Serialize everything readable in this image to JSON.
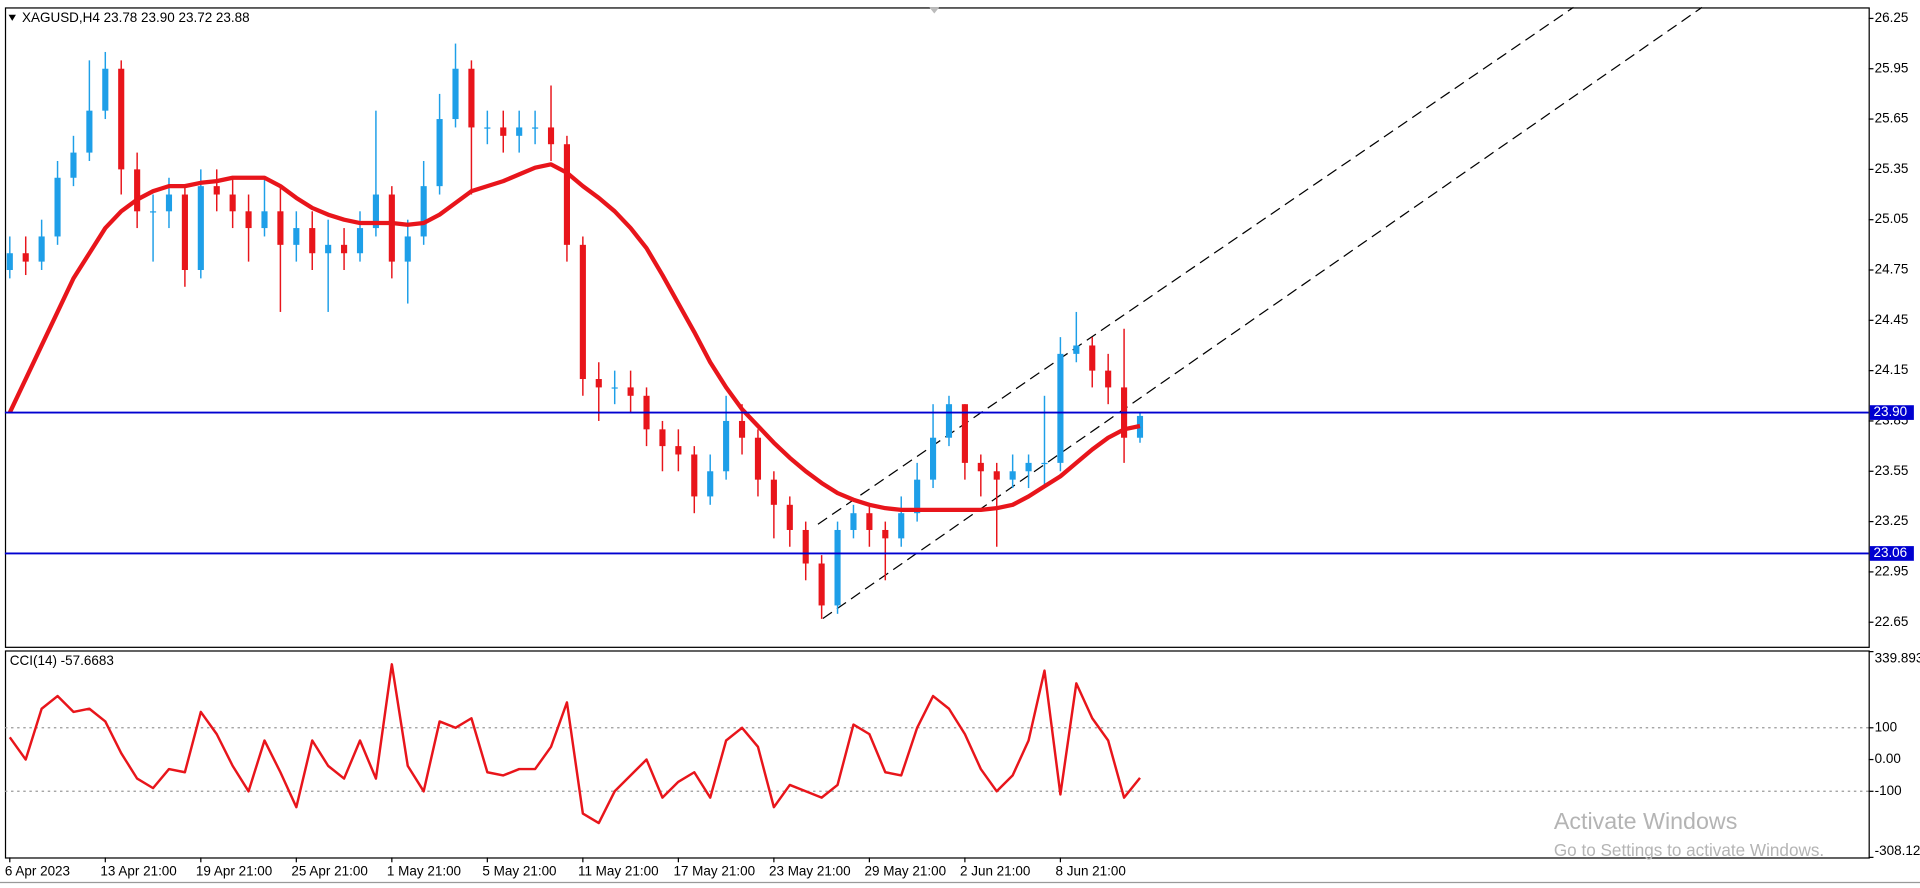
{
  "header": "XAGUSD,H4  23.78 23.90 23.72 23.88",
  "indicator_label": "CCI(14) -57.6683",
  "watermark": {
    "title": "Activate Windows",
    "subtitle": "Go to Settings to activate Windows."
  },
  "chart_data": [
    {
      "type": "candlestick",
      "categories": [
        "6 Apr 2023",
        null,
        null,
        null,
        null,
        null,
        "13 Apr 21:00",
        null,
        null,
        null,
        null,
        null,
        "19 Apr 21:00",
        null,
        null,
        null,
        null,
        null,
        "25 Apr 21:00",
        null,
        null,
        null,
        null,
        null,
        "1 May 21:00",
        null,
        null,
        null,
        null,
        null,
        "5 May 21:00",
        null,
        null,
        null,
        null,
        null,
        "11 May 21:00",
        null,
        null,
        null,
        null,
        null,
        "17 May 21:00",
        null,
        null,
        null,
        null,
        null,
        "23 May 21:00",
        null,
        null,
        null,
        null,
        null,
        "29 May 21:00",
        null,
        null,
        null,
        null,
        null,
        "2 Jun 21:00",
        null,
        null,
        null,
        null,
        null,
        "8 Jun 21:00",
        null,
        null,
        null,
        null,
        null
      ],
      "open": [
        24.75,
        24.85,
        24.8,
        24.95,
        25.3,
        25.45,
        25.7,
        25.95,
        25.35,
        25.1,
        25.1,
        25.2,
        24.75,
        25.25,
        25.2,
        25.1,
        25.0,
        25.1,
        24.9,
        25.0,
        24.85,
        24.9,
        24.85,
        25.0,
        25.2,
        24.8,
        24.95,
        25.25,
        25.65,
        25.95,
        25.6,
        25.6,
        25.55,
        25.6,
        25.6,
        25.5,
        24.9,
        24.1,
        24.05,
        24.05,
        24.0,
        23.8,
        23.7,
        23.65,
        23.4,
        23.55,
        23.85,
        23.75,
        23.5,
        23.35,
        23.2,
        23.0,
        22.75,
        23.2,
        23.3,
        23.2,
        23.15,
        23.3,
        23.5,
        23.75,
        23.95,
        23.6,
        23.55,
        23.5,
        23.55,
        23.6,
        23.6,
        24.25,
        24.3,
        24.15,
        24.05,
        23.75
      ],
      "high": [
        24.95,
        24.95,
        25.05,
        25.4,
        25.55,
        26.0,
        26.05,
        26.0,
        25.45,
        25.2,
        25.3,
        25.25,
        25.35,
        25.35,
        25.3,
        25.2,
        25.3,
        25.25,
        25.1,
        25.1,
        25.05,
        25.0,
        25.1,
        25.7,
        25.25,
        25.05,
        25.4,
        25.8,
        26.1,
        26.0,
        25.7,
        25.7,
        25.7,
        25.7,
        25.85,
        25.55,
        24.95,
        24.2,
        24.15,
        24.15,
        24.05,
        23.85,
        23.8,
        23.7,
        23.65,
        24.0,
        23.95,
        23.8,
        23.55,
        23.4,
        23.25,
        23.05,
        23.25,
        23.35,
        23.35,
        23.25,
        23.4,
        23.6,
        23.95,
        24.0,
        23.95,
        23.65,
        23.6,
        23.65,
        23.65,
        24.0,
        24.35,
        24.5,
        24.35,
        24.25,
        24.4,
        23.9
      ],
      "low": [
        24.7,
        24.72,
        24.75,
        24.9,
        25.25,
        25.4,
        25.65,
        25.2,
        25.0,
        24.8,
        25.0,
        24.65,
        24.7,
        25.1,
        25.0,
        24.8,
        24.95,
        24.5,
        24.8,
        24.75,
        24.5,
        24.75,
        24.8,
        24.95,
        24.7,
        24.55,
        24.9,
        25.2,
        25.6,
        25.2,
        25.5,
        25.45,
        25.45,
        25.5,
        25.4,
        24.8,
        24.0,
        23.85,
        23.95,
        23.9,
        23.7,
        23.55,
        23.55,
        23.3,
        23.35,
        23.5,
        23.65,
        23.4,
        23.15,
        23.1,
        22.9,
        22.67,
        22.7,
        23.15,
        23.1,
        22.9,
        23.1,
        23.25,
        23.45,
        23.7,
        23.5,
        23.4,
        23.1,
        23.45,
        23.45,
        23.45,
        23.55,
        24.2,
        24.05,
        23.95,
        23.6,
        23.72
      ],
      "close": [
        24.85,
        24.8,
        24.95,
        25.3,
        25.45,
        25.7,
        25.95,
        25.35,
        25.1,
        25.1,
        25.2,
        24.75,
        25.25,
        25.2,
        25.1,
        25.0,
        25.1,
        24.9,
        25.0,
        24.85,
        24.9,
        24.85,
        25.0,
        25.2,
        24.8,
        24.95,
        25.25,
        25.65,
        25.95,
        25.6,
        25.6,
        25.55,
        25.6,
        25.6,
        25.5,
        24.9,
        24.1,
        24.05,
        24.05,
        24.0,
        23.8,
        23.7,
        23.65,
        23.4,
        23.55,
        23.85,
        23.75,
        23.5,
        23.35,
        23.2,
        23.0,
        22.75,
        23.2,
        23.3,
        23.2,
        23.15,
        23.3,
        23.5,
        23.75,
        23.95,
        23.6,
        23.55,
        23.5,
        23.55,
        23.6,
        23.6,
        24.25,
        24.3,
        24.15,
        24.05,
        23.75,
        23.88
      ],
      "ma_values": [
        23.9,
        24.1,
        24.3,
        24.5,
        24.7,
        24.85,
        25.0,
        25.1,
        25.17,
        25.22,
        25.25,
        25.25,
        25.27,
        25.28,
        25.3,
        25.3,
        25.3,
        25.25,
        25.18,
        25.12,
        25.08,
        25.05,
        25.03,
        25.03,
        25.03,
        25.02,
        25.03,
        25.08,
        25.15,
        25.22,
        25.25,
        25.28,
        25.32,
        25.36,
        25.38,
        25.33,
        25.25,
        25.18,
        25.1,
        25.0,
        24.88,
        24.72,
        24.55,
        24.38,
        24.2,
        24.05,
        23.92,
        23.82,
        23.72,
        23.63,
        23.55,
        23.48,
        23.42,
        23.38,
        23.35,
        23.33,
        23.32,
        23.32,
        23.32,
        23.32,
        23.32,
        23.32,
        23.33,
        23.35,
        23.4,
        23.46,
        23.52,
        23.6,
        23.68,
        23.75,
        23.8,
        23.82
      ],
      "up_color": "#1e9fe8",
      "down_color": "#e8151b",
      "ma_color": "#e8151b",
      "hlines": [
        {
          "value": 23.9,
          "label": "23.90"
        },
        {
          "value": 23.06,
          "label": "23.06"
        }
      ],
      "hline_color": "#0000d0",
      "ylim": [
        22.504,
        26.316
      ],
      "yticks": [
        26.25,
        25.95,
        25.65,
        25.35,
        25.05,
        24.75,
        24.45,
        24.15,
        23.85,
        23.55,
        23.25,
        22.95,
        22.65
      ]
    },
    {
      "type": "line",
      "values": [
        70,
        0,
        160,
        200,
        150,
        160,
        120,
        20,
        -60,
        -90,
        -30,
        -40,
        150,
        80,
        -20,
        -100,
        60,
        -40,
        -150,
        60,
        -20,
        -60,
        60,
        -60,
        300,
        -20,
        -100,
        120,
        100,
        130,
        -40,
        -50,
        -30,
        -30,
        40,
        180,
        -170,
        -200,
        -100,
        -50,
        0,
        -120,
        -70,
        -40,
        -120,
        60,
        100,
        40,
        -150,
        -80,
        -100,
        -120,
        -80,
        110,
        80,
        -40,
        -50,
        100,
        200,
        160,
        80,
        -30,
        -100,
        -50,
        60,
        280,
        -110,
        240,
        130,
        60,
        -120,
        -57.6683
      ],
      "color": "#e8151b",
      "levels": [
        100,
        -100
      ],
      "ylim": [
        -308.127,
        339.893
      ],
      "yticks": [
        339.893,
        100,
        {
          "value": 0,
          "label": "0.00"
        },
        -100,
        -308.127
      ]
    }
  ]
}
